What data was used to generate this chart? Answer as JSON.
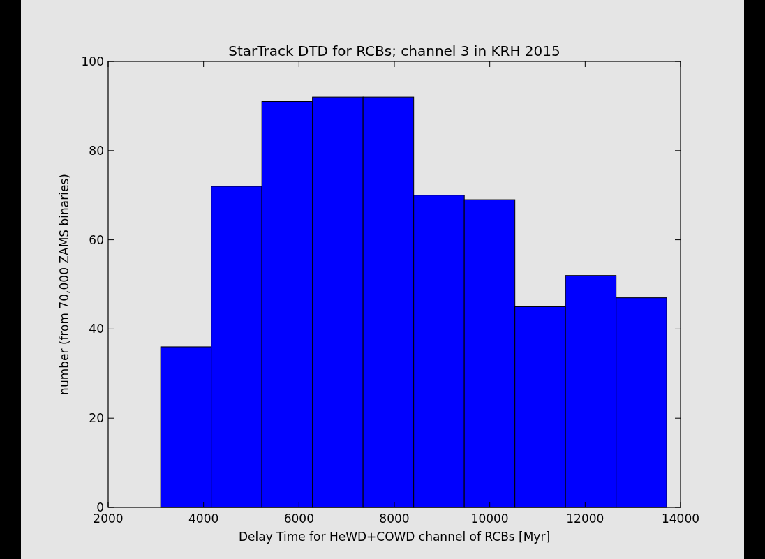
{
  "chart_data": {
    "type": "histogram",
    "title": "StarTrack DTD for RCBs; channel 3 in KRH 2015",
    "xlabel": "Delay Time for HeWD+COWD channel of RCBs [Myr]",
    "ylabel": "number (from 70,000 ZAMS binaries)",
    "bins": [
      3100,
      4161,
      5222,
      6283,
      7344,
      8405,
      9466,
      10527,
      11588,
      12649,
      13710
    ],
    "values": [
      36,
      72,
      91,
      92,
      92,
      70,
      69,
      45,
      52,
      47
    ],
    "color": "#0000ff",
    "xlim": [
      2000,
      14000
    ],
    "xticks": [
      2000,
      4000,
      6000,
      8000,
      10000,
      12000,
      14000
    ],
    "ylim": [
      0,
      100
    ],
    "yticks": [
      0,
      20,
      40,
      60,
      80,
      100
    ],
    "grid": false
  }
}
